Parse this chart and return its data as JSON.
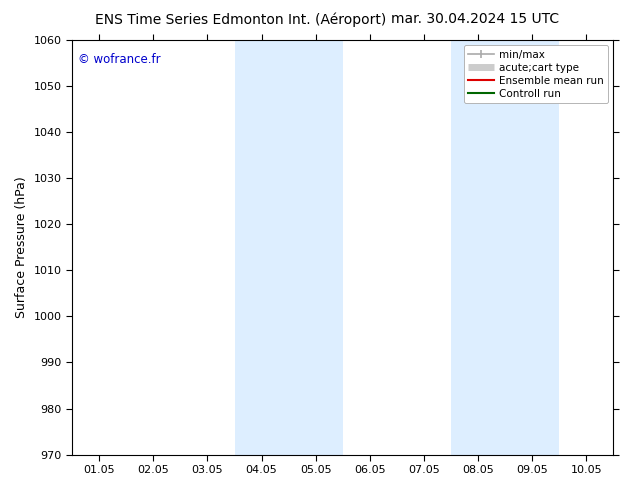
{
  "title_left": "ENS Time Series Edmonton Int. (Aéroport)",
  "title_right": "mar. 30.04.2024 15 UTC",
  "ylabel": "Surface Pressure (hPa)",
  "ylim": [
    970,
    1060
  ],
  "yticks": [
    970,
    980,
    990,
    1000,
    1010,
    1020,
    1030,
    1040,
    1050,
    1060
  ],
  "xtick_labels": [
    "01.05",
    "02.05",
    "03.05",
    "04.05",
    "05.05",
    "06.05",
    "07.05",
    "08.05",
    "09.05",
    "10.05"
  ],
  "xlim": [
    0,
    9
  ],
  "background_color": "#ffffff",
  "plot_bg_color": "#ffffff",
  "watermark_text": "© wofrance.fr",
  "watermark_color": "#0000cc",
  "shaded_regions": [
    {
      "xstart": 3.0,
      "xend": 4.0,
      "color": "#ddeeff"
    },
    {
      "xstart": 4.0,
      "xend": 5.0,
      "color": "#ddeeff"
    },
    {
      "xstart": 7.0,
      "xend": 8.0,
      "color": "#ddeeff"
    },
    {
      "xstart": 8.0,
      "xend": 9.0,
      "color": "#ddeeff"
    }
  ],
  "legend_entries": [
    {
      "label": "min/max",
      "color": "#aaaaaa",
      "lw": 1.2,
      "type": "errorbar"
    },
    {
      "label": "acute;cart type",
      "color": "#cccccc",
      "lw": 5,
      "type": "band"
    },
    {
      "label": "Ensemble mean run",
      "color": "#dd0000",
      "lw": 1.5,
      "type": "line"
    },
    {
      "label": "Controll run",
      "color": "#006600",
      "lw": 1.5,
      "type": "line"
    }
  ],
  "title_fontsize": 10,
  "tick_fontsize": 8,
  "ylabel_fontsize": 9,
  "legend_fontsize": 7.5
}
